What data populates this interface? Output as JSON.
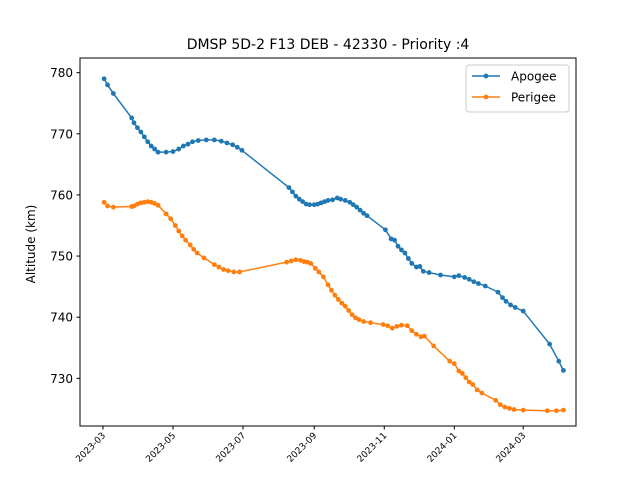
{
  "chart_data": {
    "type": "line",
    "title": "DMSP 5D-2 F13 DEB - 42330 - Priority :4",
    "xlabel": "",
    "ylabel": "Altitude (km)",
    "xlim": [
      "2023-02-09",
      "2024-04-16"
    ],
    "ylim": [
      722.2,
      782.4
    ],
    "x_ticks": [
      "2023-03",
      "2023-05",
      "2023-07",
      "2023-09",
      "2023-11",
      "2024-01",
      "2024-03"
    ],
    "y_ticks": [
      730,
      740,
      750,
      760,
      770,
      780
    ],
    "grid": false,
    "legend": "top-right",
    "colors": {
      "Apogee": "#1f77b4",
      "Perigee": "#ff7f0e"
    },
    "series": [
      {
        "name": "Apogee",
        "points": [
          [
            "2023-03-02",
            779.0
          ],
          [
            "2023-03-05",
            778.0
          ],
          [
            "2023-03-10",
            776.6
          ],
          [
            "2023-03-26",
            772.6
          ],
          [
            "2023-03-28",
            771.8
          ],
          [
            "2023-03-31",
            771.0
          ],
          [
            "2023-04-03",
            770.3
          ],
          [
            "2023-04-06",
            769.5
          ],
          [
            "2023-04-09",
            768.7
          ],
          [
            "2023-04-12",
            768.0
          ],
          [
            "2023-04-15",
            767.5
          ],
          [
            "2023-04-18",
            767.0
          ],
          [
            "2023-04-25",
            767.0
          ],
          [
            "2023-05-01",
            767.1
          ],
          [
            "2023-05-06",
            767.5
          ],
          [
            "2023-05-10",
            768.0
          ],
          [
            "2023-05-14",
            768.3
          ],
          [
            "2023-05-18",
            768.7
          ],
          [
            "2023-05-23",
            768.9
          ],
          [
            "2023-05-30",
            769.0
          ],
          [
            "2023-06-06",
            769.0
          ],
          [
            "2023-06-12",
            768.8
          ],
          [
            "2023-06-17",
            768.5
          ],
          [
            "2023-06-22",
            768.2
          ],
          [
            "2023-06-26",
            767.8
          ],
          [
            "2023-06-30",
            767.3
          ],
          [
            "2023-08-10",
            761.2
          ],
          [
            "2023-08-13",
            760.5
          ],
          [
            "2023-08-16",
            759.8
          ],
          [
            "2023-08-19",
            759.3
          ],
          [
            "2023-08-22",
            758.9
          ],
          [
            "2023-08-25",
            758.5
          ],
          [
            "2023-08-28",
            758.4
          ],
          [
            "2023-09-01",
            758.4
          ],
          [
            "2023-09-04",
            758.5
          ],
          [
            "2023-09-07",
            758.7
          ],
          [
            "2023-09-10",
            758.9
          ],
          [
            "2023-09-13",
            759.1
          ],
          [
            "2023-09-17",
            759.2
          ],
          [
            "2023-09-21",
            759.5
          ],
          [
            "2023-09-24",
            759.3
          ],
          [
            "2023-09-28",
            759.1
          ],
          [
            "2023-10-02",
            758.8
          ],
          [
            "2023-10-05",
            758.4
          ],
          [
            "2023-10-08",
            758.0
          ],
          [
            "2023-10-11",
            757.5
          ],
          [
            "2023-10-14",
            757.0
          ],
          [
            "2023-10-17",
            756.6
          ],
          [
            "2023-11-02",
            754.3
          ],
          [
            "2023-11-07",
            752.8
          ],
          [
            "2023-11-10",
            752.6
          ],
          [
            "2023-11-13",
            751.6
          ],
          [
            "2023-11-16",
            751.0
          ],
          [
            "2023-11-19",
            750.5
          ],
          [
            "2023-11-22",
            749.6
          ],
          [
            "2023-11-25",
            748.8
          ],
          [
            "2023-11-29",
            748.2
          ],
          [
            "2023-12-02",
            748.3
          ],
          [
            "2023-12-05",
            747.5
          ],
          [
            "2023-12-10",
            747.3
          ],
          [
            "2023-12-20",
            746.9
          ],
          [
            "2024-01-01",
            746.6
          ],
          [
            "2024-01-05",
            746.8
          ],
          [
            "2024-01-10",
            746.5
          ],
          [
            "2024-01-14",
            746.2
          ],
          [
            "2024-01-18",
            745.8
          ],
          [
            "2024-01-22",
            745.5
          ],
          [
            "2024-01-28",
            745.1
          ],
          [
            "2024-02-08",
            744.1
          ],
          [
            "2024-02-12",
            743.2
          ],
          [
            "2024-02-15",
            742.6
          ],
          [
            "2024-02-19",
            742.0
          ],
          [
            "2024-02-23",
            741.6
          ],
          [
            "2024-03-01",
            741.0
          ],
          [
            "2024-03-24",
            735.6
          ],
          [
            "2024-04-01",
            732.8
          ],
          [
            "2024-04-05",
            731.3
          ]
        ]
      },
      {
        "name": "Perigee",
        "points": [
          [
            "2023-03-02",
            758.8
          ],
          [
            "2023-03-05",
            758.2
          ],
          [
            "2023-03-10",
            758.0
          ],
          [
            "2023-03-26",
            758.1
          ],
          [
            "2023-03-28",
            758.2
          ],
          [
            "2023-03-31",
            758.5
          ],
          [
            "2023-04-03",
            758.7
          ],
          [
            "2023-04-06",
            758.8
          ],
          [
            "2023-04-09",
            758.9
          ],
          [
            "2023-04-12",
            758.8
          ],
          [
            "2023-04-15",
            758.6
          ],
          [
            "2023-04-18",
            758.3
          ],
          [
            "2023-04-25",
            756.9
          ],
          [
            "2023-04-29",
            756.1
          ],
          [
            "2023-05-03",
            755.0
          ],
          [
            "2023-05-06",
            754.1
          ],
          [
            "2023-05-09",
            753.3
          ],
          [
            "2023-05-12",
            752.6
          ],
          [
            "2023-05-16",
            751.8
          ],
          [
            "2023-05-19",
            751.1
          ],
          [
            "2023-05-22",
            750.5
          ],
          [
            "2023-05-28",
            749.7
          ],
          [
            "2023-06-06",
            748.6
          ],
          [
            "2023-06-10",
            748.2
          ],
          [
            "2023-06-14",
            747.8
          ],
          [
            "2023-06-18",
            747.6
          ],
          [
            "2023-06-23",
            747.4
          ],
          [
            "2023-06-28",
            747.4
          ],
          [
            "2023-08-08",
            749.0
          ],
          [
            "2023-08-12",
            749.2
          ],
          [
            "2023-08-16",
            749.4
          ],
          [
            "2023-08-20",
            749.3
          ],
          [
            "2023-08-23",
            749.1
          ],
          [
            "2023-08-26",
            749.0
          ],
          [
            "2023-08-29",
            748.8
          ],
          [
            "2023-09-02",
            748.0
          ],
          [
            "2023-09-05",
            747.4
          ],
          [
            "2023-09-09",
            746.6
          ],
          [
            "2023-09-13",
            745.3
          ],
          [
            "2023-09-16",
            744.4
          ],
          [
            "2023-09-19",
            743.6
          ],
          [
            "2023-09-22",
            742.9
          ],
          [
            "2023-09-25",
            742.3
          ],
          [
            "2023-09-28",
            741.8
          ],
          [
            "2023-10-01",
            741.1
          ],
          [
            "2023-10-04",
            740.4
          ],
          [
            "2023-10-07",
            739.9
          ],
          [
            "2023-10-10",
            739.6
          ],
          [
            "2023-10-14",
            739.3
          ],
          [
            "2023-10-20",
            739.1
          ],
          [
            "2023-10-31",
            738.8
          ],
          [
            "2023-11-04",
            738.6
          ],
          [
            "2023-11-08",
            738.2
          ],
          [
            "2023-11-12",
            738.5
          ],
          [
            "2023-11-16",
            738.7
          ],
          [
            "2023-11-21",
            738.6
          ],
          [
            "2023-11-25",
            737.8
          ],
          [
            "2023-11-29",
            737.2
          ],
          [
            "2023-12-03",
            736.8
          ],
          [
            "2023-12-06",
            736.9
          ],
          [
            "2023-12-14",
            735.3
          ],
          [
            "2023-12-28",
            732.8
          ],
          [
            "2024-01-01",
            732.4
          ],
          [
            "2024-01-05",
            731.2
          ],
          [
            "2024-01-08",
            730.8
          ],
          [
            "2024-01-11",
            730.1
          ],
          [
            "2024-01-14",
            729.4
          ],
          [
            "2024-01-17",
            729.0
          ],
          [
            "2024-01-21",
            728.1
          ],
          [
            "2024-01-25",
            727.6
          ],
          [
            "2024-02-06",
            726.4
          ],
          [
            "2024-02-10",
            725.7
          ],
          [
            "2024-02-14",
            725.3
          ],
          [
            "2024-02-18",
            725.1
          ],
          [
            "2024-02-22",
            724.9
          ],
          [
            "2024-03-01",
            724.8
          ],
          [
            "2024-03-22",
            724.7
          ],
          [
            "2024-03-30",
            724.7
          ],
          [
            "2024-04-05",
            724.8
          ]
        ]
      }
    ]
  }
}
